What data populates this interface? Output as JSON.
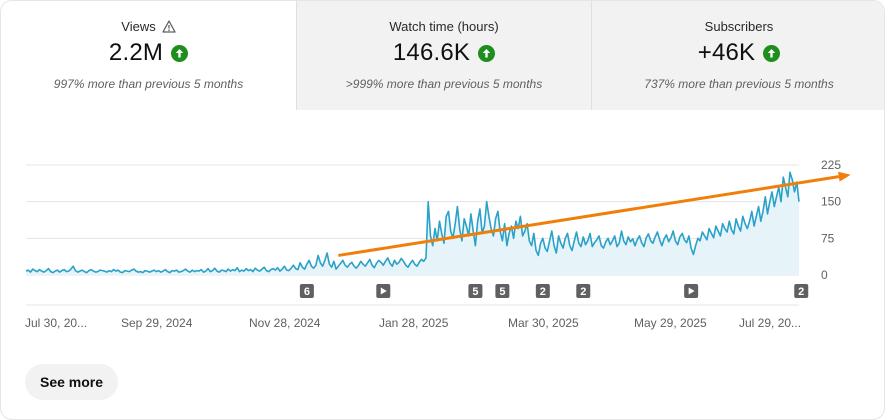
{
  "metrics": [
    {
      "label": "Views",
      "value": "2.2M",
      "comparison": "997% more than previous 5 months",
      "warning_icon": "warning-triangle-icon",
      "trend_icon": "arrow-up-circle-icon",
      "trend_color": "#1e8e1e"
    },
    {
      "label": "Watch time (hours)",
      "value": "146.6K",
      "comparison": ">999% more than previous 5 months",
      "trend_icon": "arrow-up-circle-icon",
      "trend_color": "#1e8e1e"
    },
    {
      "label": "Subscribers",
      "value": "+46K",
      "comparison": "737% more than previous 5 months",
      "trend_icon": "arrow-up-circle-icon",
      "trend_color": "#1e8e1e"
    }
  ],
  "chart_data": {
    "type": "area",
    "x_tick_labels": [
      "Jul 30, 20...",
      "Sep 29, 2024",
      "Nov 28, 2024",
      "Jan 28, 2025",
      "Mar 30, 2025",
      "May 29, 2025",
      "Jul 29, 20..."
    ],
    "y_tick_labels": [
      "225",
      "150",
      "75",
      "0"
    ],
    "ylim": [
      0,
      225
    ],
    "grid": true,
    "line_color": "#2aa1c9",
    "fill_color": "#e6f4f9",
    "trend_arrow_color": "#f07f0a",
    "trend_arrow": {
      "start": {
        "day": 139,
        "value": 40
      },
      "end": {
        "day": 367,
        "value": 205
      }
    },
    "markers": [
      {
        "label": "6",
        "day": 125
      },
      {
        "label": "play",
        "day": 159
      },
      {
        "label": "5",
        "day": 200
      },
      {
        "label": "5",
        "day": 212
      },
      {
        "label": "2",
        "day": 230
      },
      {
        "label": "2",
        "day": 248
      },
      {
        "label": "play",
        "day": 296
      },
      {
        "label": "2",
        "day": 345
      }
    ],
    "series": [
      {
        "start_date": "2024-07-30",
        "values": [
          8,
          10,
          6,
          12,
          9,
          7,
          11,
          8,
          6,
          9,
          13,
          7,
          5,
          8,
          10,
          6,
          9,
          11,
          7,
          8,
          12,
          18,
          9,
          6,
          8,
          10,
          7,
          5,
          9,
          11,
          8,
          6,
          7,
          10,
          9,
          8,
          6,
          9,
          7,
          11,
          8,
          10,
          6,
          5,
          9,
          8,
          7,
          10,
          12,
          8,
          6,
          7,
          5,
          9,
          8,
          6,
          8,
          10,
          7,
          9,
          6,
          8,
          11,
          7,
          5,
          9,
          8,
          10,
          6,
          7,
          9,
          12,
          8,
          6,
          10,
          7,
          9,
          8,
          11,
          6,
          8,
          13,
          7,
          9,
          14,
          8,
          6,
          10,
          9,
          7,
          12,
          8,
          11,
          9,
          15,
          7,
          10,
          8,
          13,
          9,
          11,
          7,
          14,
          10,
          8,
          12,
          16,
          9,
          7,
          11,
          13,
          10,
          15,
          8,
          12,
          18,
          10,
          9,
          14,
          20,
          13,
          11,
          25,
          16,
          12,
          22,
          30,
          18,
          14,
          20,
          40,
          25,
          18,
          30,
          45,
          22,
          16,
          28,
          12,
          18,
          24,
          30,
          20,
          16,
          22,
          26,
          18,
          14,
          20,
          28,
          22,
          18,
          25,
          32,
          20,
          15,
          24,
          30,
          26,
          20,
          28,
          35,
          24,
          18,
          30,
          22,
          26,
          34,
          28,
          20,
          16,
          24,
          30,
          22,
          18,
          26,
          32,
          28,
          35,
          150,
          80,
          60,
          95,
          70,
          110,
          85,
          65,
          120,
          130,
          90,
          75,
          105,
          140,
          95,
          70,
          115,
          100,
          80,
          125,
          90,
          60,
          110,
          135,
          85,
          100,
          150,
          120,
          95,
          80,
          115,
          130,
          90,
          70,
          105,
          60,
          85,
          100,
          75,
          110,
          95,
          120,
          80,
          90,
          105,
          70,
          60,
          85,
          50,
          40,
          65,
          75,
          55,
          48,
          70,
          90,
          60,
          45,
          80,
          65,
          55,
          75,
          85,
          60,
          50,
          70,
          88,
          65,
          58,
          78,
          62,
          70,
          85,
          58,
          66,
          72,
          80,
          60,
          55,
          68,
          75,
          62,
          70,
          80,
          58,
          65,
          90,
          70,
          62,
          78,
          68,
          74,
          60,
          72,
          80,
          66,
          58,
          76,
          84,
          70,
          65,
          78,
          88,
          72,
          60,
          74,
          82,
          68,
          76,
          90,
          70,
          62,
          78,
          85,
          72,
          66,
          80,
          55,
          42,
          60,
          75,
          70,
          88,
          80,
          72,
          95,
          85,
          76,
          100,
          90,
          80,
          105,
          95,
          88,
          110,
          92,
          84,
          115,
          100,
          90,
          120,
          105,
          95,
          110,
          130,
          100,
          120,
          140,
          110,
          130,
          160,
          125,
          150,
          170,
          140,
          160,
          180,
          150,
          200,
          180,
          160,
          210,
          195,
          170,
          190,
          150
        ]
      }
    ]
  },
  "markers_play_icon": "play-icon",
  "see_more_label": "See more"
}
